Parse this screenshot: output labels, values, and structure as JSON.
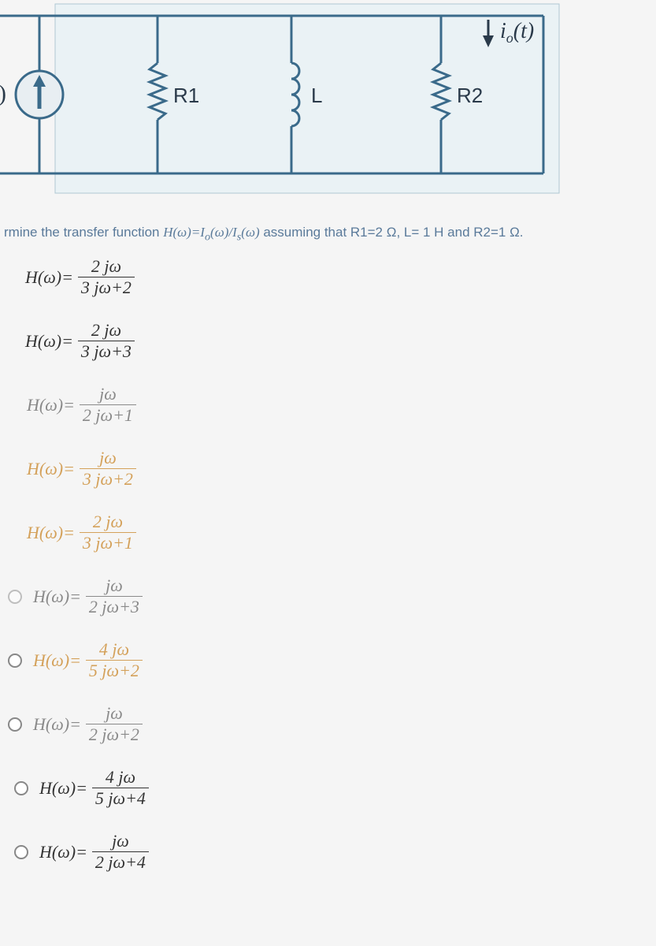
{
  "circuit": {
    "wire_color": "#3a6a8a",
    "wire_width": 3,
    "bg_color": "#eaf2f5",
    "border_color": "#b0c8d4",
    "labels": {
      "R1": "R1",
      "L": "L",
      "R2": "R2",
      "io": "iₒ(t)"
    },
    "label_fontsize": 26,
    "label_color": "#2a3a4a"
  },
  "question": {
    "prefix": "rmine the transfer function ",
    "func": "H(ω)=Iₒ(ω)/Iₛ(ω)",
    "suffix": " assuming that R1=2 Ω, L= 1 H and R2=1 Ω."
  },
  "options": [
    {
      "lhs": "H(ω)=",
      "num": "2 jω",
      "den": "3 jω+2",
      "style": "plain",
      "radio": "hidden",
      "shift": "shifted-neg"
    },
    {
      "lhs": "H(ω)=",
      "num": "2 jω",
      "den": "3 jω+3",
      "style": "plain",
      "radio": "hidden",
      "shift": "shifted-neg"
    },
    {
      "lhs": "H(ω)=",
      "num": "jω",
      "den": "2 jω+1",
      "style": "grayish",
      "radio": "hidden",
      "shift": ""
    },
    {
      "lhs": "H(ω)=",
      "num": "jω",
      "den": "3 jω+2",
      "style": "colored",
      "radio": "hidden",
      "shift": ""
    },
    {
      "lhs": "H(ω)=",
      "num": "2 jω",
      "den": "3 jω+1",
      "style": "colored",
      "radio": "hidden",
      "shift": ""
    },
    {
      "lhs": "H(ω)=",
      "num": "jω",
      "den": "2 jω+3",
      "style": "grayish",
      "radio": "faded",
      "shift": "shifted"
    },
    {
      "lhs": "H(ω)=",
      "num": "4 jω",
      "den": "5 jω+2",
      "style": "colored",
      "radio": "show",
      "shift": "shifted"
    },
    {
      "lhs": "H(ω)=",
      "num": "jω",
      "den": "2 jω+2",
      "style": "grayish",
      "radio": "show",
      "shift": "shifted"
    },
    {
      "lhs": "H(ω)=",
      "num": "4 jω",
      "den": "5 jω+4",
      "style": "plain",
      "radio": "show",
      "shift": "shifted2"
    },
    {
      "lhs": "H(ω)=",
      "num": "jω",
      "den": "2 jω+4",
      "style": "plain",
      "radio": "show",
      "shift": "shifted2"
    }
  ]
}
